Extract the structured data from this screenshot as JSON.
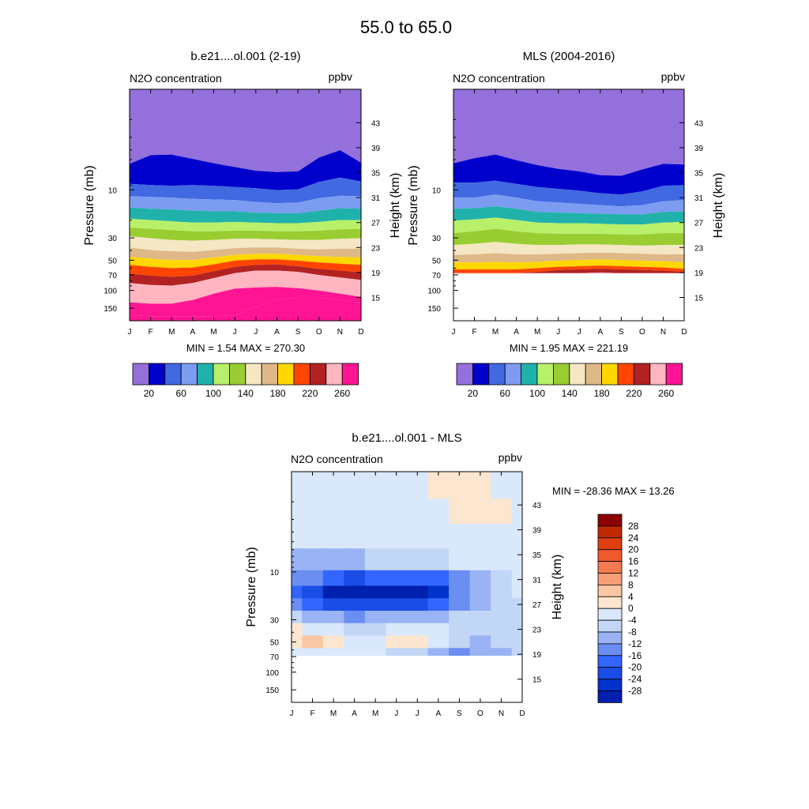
{
  "page": {
    "title": "55.0 to  65.0"
  },
  "axes": {
    "pressure_label": "Pressure (mb)",
    "height_label": "Height (km)",
    "field_label": "N2O concentration",
    "units": "ppbv",
    "month_labels": [
      "J",
      "F",
      "M",
      "A",
      "M",
      "J",
      "J",
      "A",
      "S",
      "O",
      "N",
      "D"
    ],
    "pressure_ticks": [
      "10",
      "30",
      "50",
      "70",
      "100",
      "150"
    ],
    "height_ticks": [
      "43",
      "39",
      "35",
      "31",
      "27",
      "23",
      "19",
      "15"
    ]
  },
  "chart_data": [
    {
      "type": "heatmap",
      "subtype": "filled-contour",
      "title": "b.e21....ol.001 (2-19)",
      "left_label": "N2O concentration",
      "right_label": "ppbv",
      "xlabel": "",
      "ylabel": "Pressure (mb)",
      "y2label": "Height (km)",
      "x": [
        "J",
        "F",
        "M",
        "A",
        "M",
        "J",
        "J",
        "A",
        "S",
        "O",
        "N",
        "D"
      ],
      "y_axis": "pressure (log, decreasing upward)",
      "ylim_mb": [
        200,
        1
      ],
      "contour_levels": [
        20,
        40,
        60,
        80,
        100,
        120,
        140,
        160,
        180,
        200,
        220,
        240,
        260
      ],
      "colors": [
        "#9370db",
        "#0000cd",
        "#4169e1",
        "#7b9cf0",
        "#20b2aa",
        "#b8f06a",
        "#9acd32",
        "#f5e6c4",
        "#deb887",
        "#ffd700",
        "#ff4500",
        "#b22222",
        "#ffb6c1",
        "#ff1493"
      ],
      "boundaries_height_km_by_month": [
        [
          36.4,
          37.8,
          37.9,
          37.2,
          36.5,
          35.9,
          35.3,
          35.1,
          35.2,
          37.4,
          38.6,
          36.6
        ],
        [
          33.2,
          33.0,
          32.9,
          33.0,
          32.9,
          32.7,
          32.5,
          32.2,
          32.3,
          33.5,
          34.2,
          33.6
        ],
        [
          31.2,
          31.1,
          31.0,
          30.8,
          30.7,
          30.6,
          30.3,
          30.1,
          30.2,
          30.9,
          31.3,
          31.2
        ],
        [
          29.4,
          29.2,
          29.1,
          28.9,
          28.8,
          28.8,
          28.6,
          28.5,
          28.5,
          28.9,
          29.3,
          29.2
        ],
        [
          27.6,
          27.4,
          27.2,
          27.0,
          27.0,
          27.1,
          27.0,
          26.9,
          26.9,
          27.1,
          27.4,
          27.4
        ],
        [
          26.2,
          26.0,
          25.8,
          25.6,
          25.6,
          25.7,
          25.7,
          25.6,
          25.6,
          25.7,
          25.9,
          26.0
        ],
        [
          24.8,
          24.5,
          24.2,
          24.1,
          24.2,
          24.4,
          24.4,
          24.3,
          24.2,
          24.2,
          24.4,
          24.5
        ],
        [
          23.0,
          22.6,
          22.4,
          22.3,
          22.6,
          22.9,
          23.0,
          23.0,
          22.8,
          22.7,
          22.8,
          22.8
        ],
        [
          21.5,
          21.2,
          21.0,
          21.0,
          21.4,
          21.8,
          22.0,
          22.0,
          21.8,
          21.6,
          21.5,
          21.4
        ],
        [
          20.2,
          19.9,
          19.7,
          19.8,
          20.3,
          20.9,
          21.1,
          21.1,
          20.9,
          20.6,
          20.4,
          20.2
        ],
        [
          18.8,
          18.5,
          18.3,
          18.5,
          19.2,
          19.9,
          20.2,
          20.3,
          20.0,
          19.6,
          19.3,
          19.0
        ],
        [
          17.3,
          17.0,
          16.9,
          17.3,
          18.1,
          18.9,
          19.3,
          19.3,
          19.1,
          18.6,
          18.2,
          17.8
        ],
        [
          14.2,
          14.0,
          14.0,
          14.6,
          15.6,
          16.4,
          16.6,
          16.7,
          16.5,
          16.1,
          15.6,
          15.1
        ],
        [
          12.2,
          12.0,
          12.0,
          12.0,
          12.0,
          12.1,
          13.5,
          14.6,
          15.0,
          15.0,
          14.6,
          14.1
        ]
      ],
      "min": "1.54",
      "max": "270.30",
      "stats_text": "MIN =   1.54  MAX = 270.30"
    },
    {
      "type": "heatmap",
      "subtype": "filled-contour",
      "title": "MLS (2004-2016)",
      "left_label": "N2O concentration",
      "right_label": "ppbv",
      "xlabel": "",
      "ylabel": "Pressure (mb)",
      "y2label": "Height (km)",
      "x": [
        "J",
        "F",
        "M",
        "A",
        "M",
        "J",
        "J",
        "A",
        "S",
        "O",
        "N",
        "D"
      ],
      "y_axis": "pressure (log, decreasing upward)",
      "ylim_mb": [
        200,
        1
      ],
      "data_lower_limit_mb": 68,
      "contour_levels": [
        20,
        40,
        60,
        80,
        100,
        120,
        140,
        160,
        180,
        200,
        220,
        240,
        260
      ],
      "colors": [
        "#9370db",
        "#0000cd",
        "#4169e1",
        "#7b9cf0",
        "#20b2aa",
        "#b8f06a",
        "#9acd32",
        "#f5e6c4",
        "#deb887",
        "#ffd700",
        "#ff4500",
        "#b22222",
        "#ffb6c1",
        "#ff1493"
      ],
      "boundaries_height_km_by_month": [
        [
          36.5,
          37.3,
          37.9,
          37.0,
          36.2,
          35.6,
          35.2,
          34.6,
          34.5,
          35.5,
          36.4,
          36.3
        ],
        [
          33.4,
          33.4,
          33.7,
          33.2,
          32.7,
          32.4,
          32.1,
          31.7,
          31.5,
          32.0,
          32.9,
          33.0
        ],
        [
          31.0,
          31.0,
          31.5,
          31.0,
          30.4,
          30.2,
          30.0,
          29.8,
          29.6,
          29.8,
          30.4,
          30.6
        ],
        [
          29.2,
          29.3,
          29.6,
          29.2,
          28.7,
          28.6,
          28.5,
          28.4,
          28.3,
          28.3,
          28.7,
          28.8
        ],
        [
          27.3,
          27.5,
          27.8,
          27.4,
          27.0,
          26.9,
          26.9,
          26.8,
          26.7,
          26.7,
          27.0,
          27.1
        ],
        [
          25.3,
          25.6,
          26.0,
          25.6,
          25.3,
          25.2,
          25.2,
          25.2,
          25.1,
          25.1,
          25.3,
          25.3
        ],
        [
          23.4,
          23.6,
          23.9,
          23.6,
          23.4,
          23.4,
          23.5,
          23.5,
          23.4,
          23.3,
          23.4,
          23.4
        ],
        [
          21.8,
          21.9,
          22.1,
          21.9,
          21.9,
          22.0,
          22.1,
          22.2,
          22.1,
          22.0,
          21.9,
          21.9
        ],
        [
          20.6,
          20.6,
          20.7,
          20.6,
          20.7,
          20.9,
          21.0,
          21.1,
          21.0,
          20.9,
          20.8,
          20.6
        ],
        [
          19.5,
          19.5,
          19.5,
          19.5,
          19.7,
          19.9,
          20.0,
          20.1,
          20.0,
          19.9,
          19.8,
          19.6
        ],
        [
          18.9,
          18.9,
          18.9,
          18.9,
          19.1,
          19.4,
          19.5,
          19.6,
          19.5,
          19.4,
          19.3,
          19.1
        ],
        [
          18.9,
          18.9,
          18.9,
          18.9,
          18.9,
          18.9,
          18.9,
          19.0,
          18.9,
          18.9,
          18.9,
          18.9
        ]
      ],
      "min": "1.95",
      "max": "221.19",
      "stats_text": "MIN =   1.95  MAX = 221.19"
    },
    {
      "type": "heatmap",
      "subtype": "filled-contour difference",
      "title": "b.e21....ol.001 - MLS",
      "left_label": "N2O concentration",
      "right_label": "ppbv",
      "xlabel": "",
      "ylabel": "Pressure (mb)",
      "y2label": "Height (km)",
      "x": [
        "J",
        "F",
        "M",
        "A",
        "M",
        "J",
        "J",
        "A",
        "S",
        "O",
        "N",
        "D"
      ],
      "y_axis": "pressure (log, decreasing upward)",
      "ylim_mb": [
        200,
        1
      ],
      "data_lower_limit_mb": 68,
      "contour_levels": [
        -28,
        -24,
        -20,
        -16,
        -12,
        -8,
        -4,
        0,
        4,
        8,
        12,
        16,
        20,
        24,
        28
      ],
      "colors": [
        "#00008b",
        "#0020b0",
        "#0033cc",
        "#1a4de6",
        "#3366ff",
        "#6b8ef2",
        "#99b3f5",
        "#c2d6f5",
        "#d9e8fa",
        "#fde6cf",
        "#fbc6a4",
        "#f7a07a",
        "#f57a50",
        "#ef5a2a",
        "#e04010",
        "#c02a00",
        "#8b0000"
      ],
      "grid_heights_km": [
        46,
        42,
        38,
        34,
        31,
        29,
        27,
        25,
        23,
        21,
        19
      ],
      "grid_values": [
        [
          1,
          1,
          1,
          1,
          1,
          1,
          1,
          5,
          5,
          5,
          1,
          1
        ],
        [
          1,
          1,
          1,
          1,
          1,
          1,
          1,
          3,
          4,
          5,
          4,
          1
        ],
        [
          1,
          1,
          1,
          1,
          1,
          1,
          1,
          0,
          2,
          3,
          3,
          1
        ],
        [
          -5,
          -6,
          -5,
          -5,
          -4,
          -4,
          -3,
          -2,
          0,
          1,
          1,
          0
        ],
        [
          -10,
          -12,
          -14,
          -17,
          -16,
          -15,
          -14,
          -14,
          -9,
          -5,
          -2,
          0
        ],
        [
          -14,
          -20,
          -26,
          -28,
          -28,
          -28,
          -28,
          -22,
          -12,
          -7,
          -3,
          0
        ],
        [
          -9,
          -14,
          -18,
          -20,
          -20,
          -19,
          -18,
          -16,
          -10,
          -6,
          -3,
          -1
        ],
        [
          -4,
          -6,
          -8,
          -9,
          -8,
          -7,
          -6,
          -5,
          -4,
          -4,
          -2,
          -1
        ],
        [
          4,
          3,
          0,
          -2,
          -1,
          0,
          1,
          1,
          -1,
          -3,
          -2,
          -1
        ],
        [
          6,
          10,
          6,
          2,
          3,
          4,
          4,
          2,
          -2,
          -5,
          -4,
          -3
        ],
        [
          2,
          3,
          3,
          1,
          0,
          -2,
          -4,
          -8,
          -10,
          -8,
          -5,
          -4
        ]
      ],
      "min": "-28.36",
      "max": "13.26",
      "stats_text": "MIN = -28.36  MAX =  13.26"
    }
  ],
  "colorbars": {
    "abs": {
      "labels": [
        "20",
        "60",
        "100",
        "140",
        "180",
        "220",
        "260"
      ],
      "colors": [
        "#9370db",
        "#0000cd",
        "#4169e1",
        "#7b9cf0",
        "#20b2aa",
        "#b8f06a",
        "#9acd32",
        "#f5e6c4",
        "#deb887",
        "#ffd700",
        "#ff4500",
        "#b22222",
        "#ffb6c1",
        "#ff1493"
      ]
    },
    "diff": {
      "labels": [
        "28",
        "24",
        "20",
        "16",
        "12",
        "8",
        "4",
        "0",
        "-4",
        "-8",
        "-12",
        "-16",
        "-20",
        "-24",
        "-28"
      ],
      "colors": [
        "#8b0000",
        "#c02a00",
        "#e04010",
        "#ef5a2a",
        "#f57a50",
        "#f7a07a",
        "#fbc6a4",
        "#fde6cf",
        "#d9e8fa",
        "#c2d6f5",
        "#99b3f5",
        "#6b8ef2",
        "#3366ff",
        "#1a4de6",
        "#0033cc",
        "#0020b0"
      ]
    }
  }
}
